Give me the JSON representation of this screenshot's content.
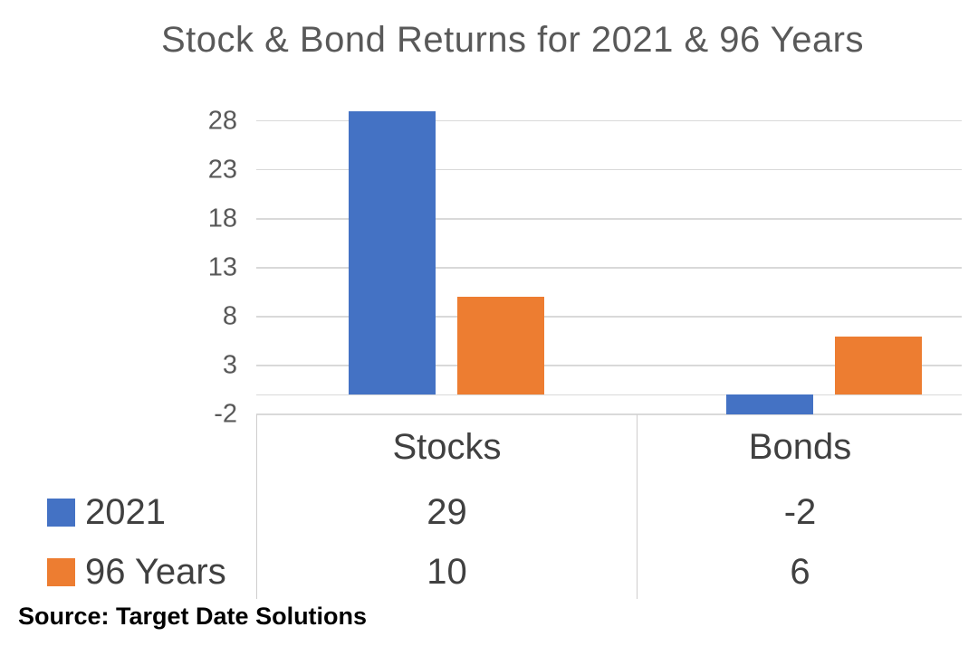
{
  "chart_data": {
    "type": "bar",
    "title": "Stock & Bond Returns for 2021 & 96 Years",
    "categories": [
      "Stocks",
      "Bonds"
    ],
    "series": [
      {
        "name": "2021",
        "color": "#4472C4",
        "values": [
          29,
          -2
        ]
      },
      {
        "name": "96 Years",
        "color": "#ED7D31",
        "values": [
          10,
          6
        ]
      }
    ],
    "y_axis": {
      "min": -2,
      "max": 30,
      "ticks": [
        28,
        23,
        18,
        13,
        8,
        3,
        -2
      ]
    },
    "grid": true,
    "gridline_color": "#D9D9D9",
    "legend_position": "data-table-left",
    "data_table": true
  },
  "colors": {
    "series_2021": "#4472C4",
    "series_96_years": "#ED7D31",
    "title_text": "#595959",
    "axis_text": "#595959",
    "table_text": "#404040",
    "gridline": "#D9D9D9",
    "table_border": "#CFCDCD"
  },
  "source": "Source: Target Date Solutions"
}
